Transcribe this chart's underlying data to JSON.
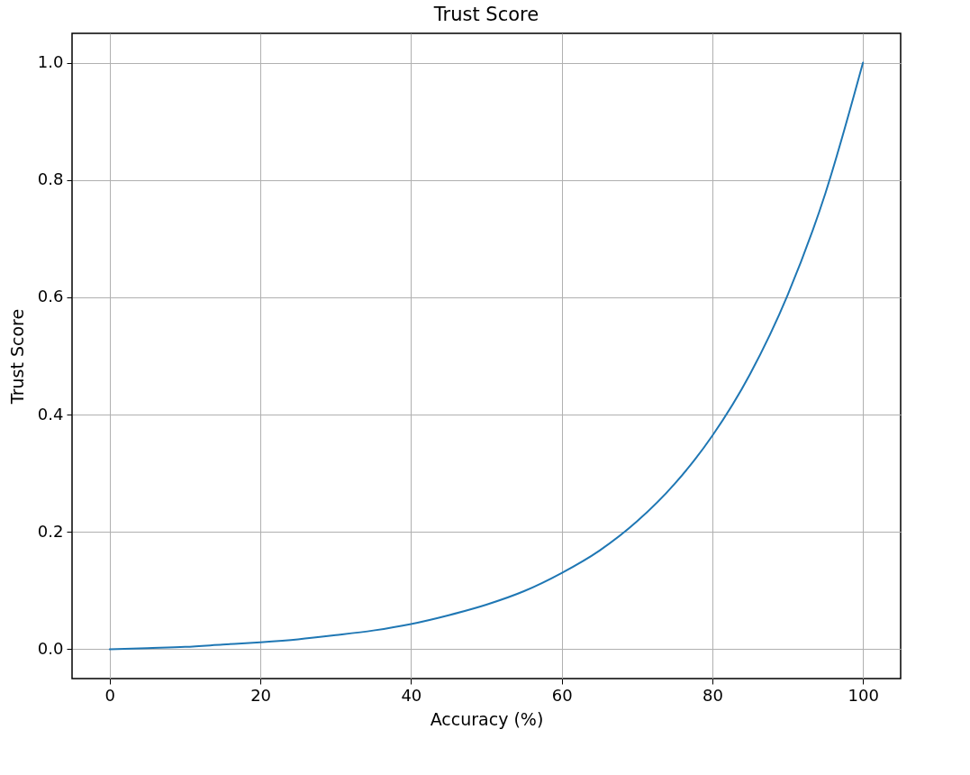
{
  "chart_data": {
    "type": "line",
    "title": "Trust Score",
    "xlabel": "Accuracy (%)",
    "ylabel": "Trust Score",
    "x": [
      0,
      5,
      10,
      15,
      20,
      25,
      30,
      35,
      40,
      45,
      50,
      55,
      60,
      65,
      70,
      75,
      80,
      85,
      90,
      95,
      100
    ],
    "series": [
      {
        "color": "#1f77b4",
        "values": [
          0,
          0.002,
          0.004,
          0.008,
          0.012,
          0.017,
          0.024,
          0.032,
          0.043,
          0.058,
          0.076,
          0.099,
          0.13,
          0.168,
          0.218,
          0.282,
          0.364,
          0.469,
          0.604,
          0.777,
          1.0
        ]
      }
    ],
    "xlim": [
      -5,
      105
    ],
    "ylim": [
      -0.05,
      1.05
    ],
    "xticks": [
      0,
      20,
      40,
      60,
      80,
      100
    ],
    "yticks": [
      {
        "value": 0,
        "label": "0.0"
      },
      {
        "value": 0.2,
        "label": "0.2"
      },
      {
        "value": 0.4,
        "label": "0.4"
      },
      {
        "value": 0.6,
        "label": "0.6"
      },
      {
        "value": 0.8,
        "label": "0.8"
      },
      {
        "value": 1,
        "label": "1.0"
      }
    ],
    "grid": true,
    "line_style": "solid",
    "marker": "none"
  }
}
